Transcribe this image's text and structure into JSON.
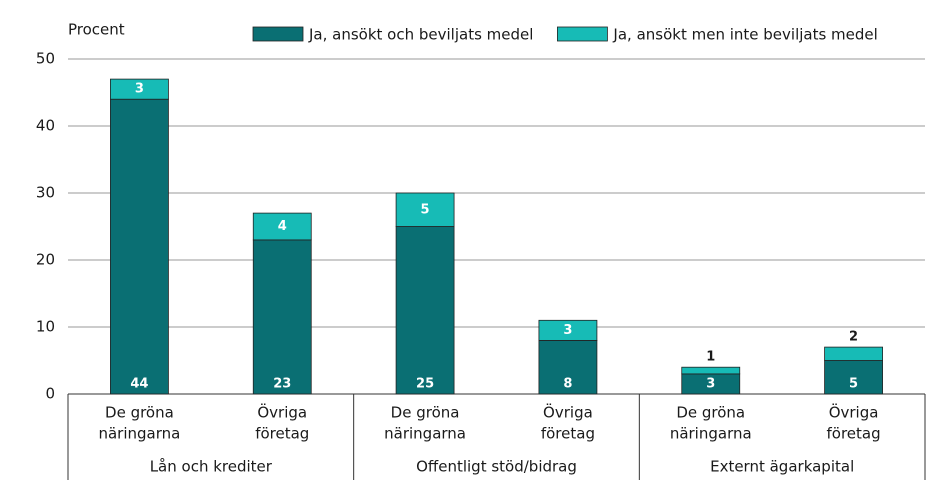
{
  "chart_data": {
    "type": "stacked_bar",
    "ylabel": "Procent",
    "groups": [
      {
        "name": "Lån och krediter",
        "categories": [
          [
            "De gröna",
            "näringarna"
          ],
          [
            "Övriga",
            "företag"
          ]
        ]
      },
      {
        "name": "Offentligt stöd/bidrag",
        "categories": [
          [
            "De gröna",
            "näringarna"
          ],
          [
            "Övriga",
            "företag"
          ]
        ]
      },
      {
        "name": "Externt ägarkapital",
        "categories": [
          [
            "De gröna",
            "näringarna"
          ],
          [
            "Övriga",
            "företag"
          ]
        ]
      }
    ],
    "series": [
      {
        "name": "Ja, ansökt och beviljats medel",
        "color": "#0a6f73",
        "values": [
          44,
          23,
          25,
          8,
          3,
          5
        ]
      },
      {
        "name": "Ja, ansökt men inte beviljats medel",
        "color": "#17bbb6",
        "values": [
          3,
          4,
          5,
          3,
          1,
          2
        ]
      }
    ],
    "ylim": [
      0,
      50
    ],
    "yticks": [
      0,
      10,
      20,
      30,
      40,
      50
    ],
    "grid": true,
    "legend": "top"
  }
}
